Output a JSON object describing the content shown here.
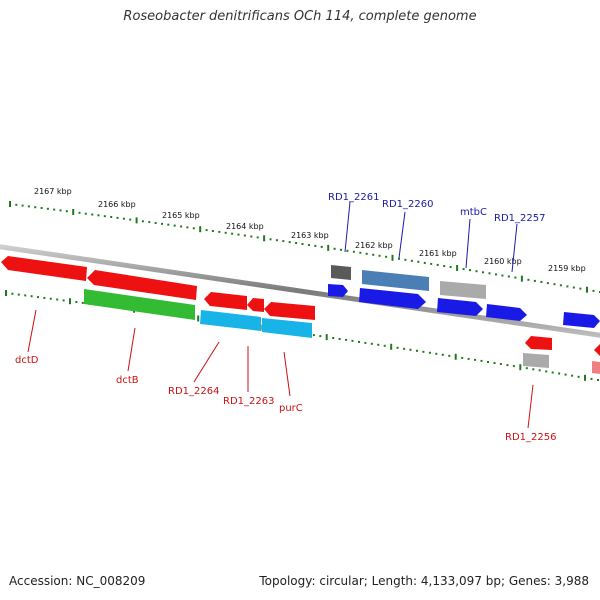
{
  "title": "Roseobacter denitrificans OCh 114, complete genome",
  "footer": {
    "accession": "Accession: NC_008209",
    "topology": "Topology: circular; Length: 4,133,097 bp; Genes: 3,988"
  },
  "colors": {
    "backbone": "#8a8a8a",
    "tick": "#1f7a1f",
    "upper_label": "#1a1aa6",
    "lower_label": "#cc1111"
  },
  "ruler": {
    "upper": [
      "2167 kbp",
      "2166 kbp",
      "2165 kbp",
      "2164 kbp",
      "2163 kbp",
      "2162 kbp",
      "2161 kbp",
      "2160 kbp",
      "2159 kbp"
    ]
  },
  "genes": {
    "upper": [
      {
        "id": "rd1_2261",
        "label": "RD1_2261",
        "color": "#555555",
        "icon": "rectangle"
      },
      {
        "id": "rd1_2260",
        "label": "RD1_2260",
        "color": "#4a7fb5",
        "icon": "rectangle"
      },
      {
        "id": "mtbc",
        "label": "mtbC",
        "color": "#aaaaaa",
        "icon": "rectangle"
      },
      {
        "id": "rd1_2257",
        "label": "RD1_2257",
        "color": "#1a1ae6",
        "icon": "arrow-right"
      }
    ],
    "lower": [
      {
        "id": "dctd",
        "label": "dctD",
        "color": "#ee1111",
        "icon": "arrow-left"
      },
      {
        "id": "dctb",
        "label": "dctB",
        "color": "#33bb33",
        "icon": "rectangle"
      },
      {
        "id": "rd1_2264",
        "label": "RD1_2264",
        "color": "#18b4e8",
        "icon": "rectangle"
      },
      {
        "id": "rd1_2263",
        "label": "RD1_2263",
        "color": "#18b4e8",
        "icon": "rectangle"
      },
      {
        "id": "purc",
        "label": "purC",
        "color": "#ee1111",
        "icon": "arrow-left"
      },
      {
        "id": "rd1_2256",
        "label": "RD1_2256",
        "color": "#ee1111",
        "icon": "arrow-left"
      }
    ]
  }
}
